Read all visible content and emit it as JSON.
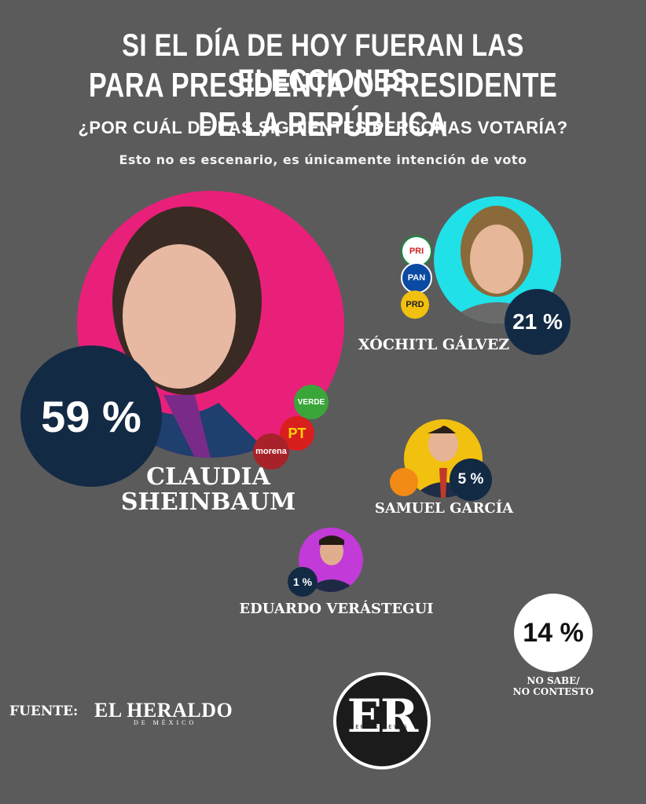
{
  "header": {
    "title_line1": "SI EL DÍA DE HOY FUERAN LAS ELECCIONES",
    "title_line2": "PARA PRESIDENTA O PRESIDENTE DE LA REPÚBLICA",
    "question": "¿POR CUÁL DE LAS SIGUIENTES PERSONAS VOTARÍA?",
    "note": "Esto no es escenario, es únicamente intención de voto"
  },
  "candidates": [
    {
      "name_line1": "CLAUDIA",
      "name_line2": "SHEINBAUM",
      "percent_label": "59 %",
      "color": "#e8207a"
    },
    {
      "name": "XÓCHITL GÁLVEZ",
      "percent_label": "21 %",
      "color": "#20e0e8"
    },
    {
      "name": "SAMUEL GARCÍA",
      "percent_label": "5 %",
      "color": "#f2c00e"
    },
    {
      "name": "EDUARDO VERÁSTEGUI",
      "percent_label": "1 %",
      "color": "#c23ad8"
    }
  ],
  "undecided": {
    "percent_label": "14 %",
    "label_line1": "NO SABE/",
    "label_line2": "NO CONTESTO"
  },
  "party_logos": {
    "pri": "PRI",
    "pan": "PAN",
    "prd": "PRD",
    "verde": "VERDE",
    "pt": "PT",
    "morena": "morena",
    "mc": "MOVIMIENTO CIUDADANO"
  },
  "footer": {
    "source_label": "FUENTE:",
    "source_name": "EL HERALDO",
    "source_sub": "DE MÉXICO",
    "brand_initials": "ER",
    "brand_name": "ERICK REYES"
  },
  "chart_data": {
    "type": "bubble",
    "series": [
      {
        "name": "CLAUDIA SHEINBAUM",
        "value": 59
      },
      {
        "name": "XÓCHITL GÁLVEZ",
        "value": 21
      },
      {
        "name": "SAMUEL GARCÍA",
        "value": 5
      },
      {
        "name": "EDUARDO VERÁSTEGUI",
        "value": 1
      },
      {
        "name": "NO SABE/NO CONTESTO",
        "value": 14
      }
    ],
    "unit": "%"
  }
}
